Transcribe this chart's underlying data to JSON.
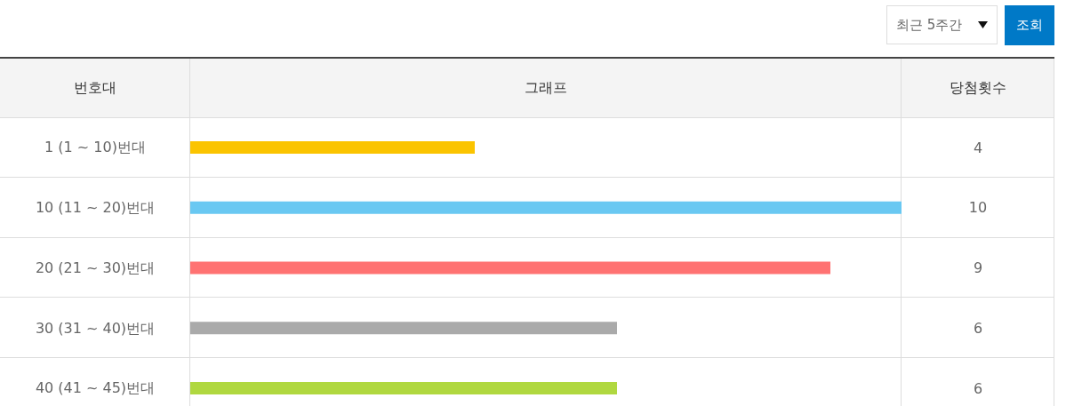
{
  "chart_data": {
    "type": "bar",
    "orientation": "horizontal",
    "title": "그래프",
    "ylabel": "번호대",
    "xlabel": "당첨횟수",
    "categories": [
      "1 (1 ~ 10)번대",
      "10 (11 ~ 20)번대",
      "20 (21 ~ 30)번대",
      "30 (31 ~ 40)번대",
      "40 (41 ~ 45)번대"
    ],
    "values": [
      4,
      10,
      9,
      6,
      6
    ],
    "colors": [
      "#fbc400",
      "#69c8f2",
      "#ff7272",
      "#aaaaaa",
      "#b0d840"
    ],
    "xlim": [
      0,
      10
    ],
    "tick_labels": "y",
    "data_labels": true,
    "annotations": [
      "최근 5주간",
      "조회"
    ]
  }
}
